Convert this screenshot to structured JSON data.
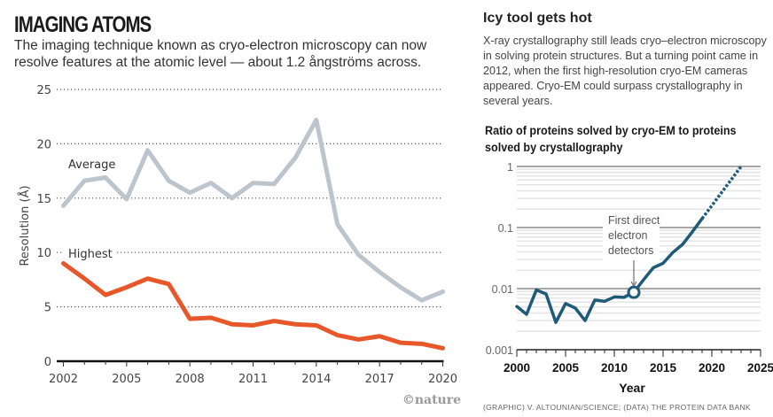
{
  "left": {
    "title": "IMAGING ATOMS",
    "subtitle": "The imaging technique known as cryo-electron microscopy can now resolve features at the atomic level — about 1.2 ångströms across.",
    "watermark": "©nature"
  },
  "right": {
    "title": "Icy tool gets hot",
    "body": "X-ray crystallography still leads cryo–electron microscopy in solving protein structures. But a turning point came in 2012, when the first high-resolution cryo-EM cameras appeared. Cryo-EM could surpass crystallography in several years.",
    "chart_title": "Ratio of proteins solved by cryo-EM to proteins solved by crystallography",
    "credit": "(GRAPHIC) V. ALTOUNIAN/SCIENCE; (DATA) THE PROTEIN DATA BANK"
  },
  "colors": {
    "average": "#bcc5cd",
    "highest": "#e8572a",
    "ratio": "#1f5a78",
    "grid": "#888888"
  },
  "chart_data": [
    {
      "type": "line",
      "title": "IMAGING ATOMS",
      "xlabel": "",
      "ylabel": "Resolution (Å)",
      "xlim": [
        2002,
        2020
      ],
      "ylim": [
        0,
        25
      ],
      "x_ticks": [
        2002,
        2005,
        2008,
        2011,
        2014,
        2017,
        2020
      ],
      "y_ticks": [
        0,
        5,
        10,
        15,
        20,
        25
      ],
      "grid": "horizontal dotted",
      "x": [
        2002,
        2003,
        2004,
        2005,
        2006,
        2007,
        2008,
        2009,
        2010,
        2011,
        2012,
        2013,
        2014,
        2015,
        2016,
        2017,
        2018,
        2019,
        2020
      ],
      "series": [
        {
          "name": "Average",
          "values": [
            14.3,
            16.6,
            16.9,
            14.9,
            19.4,
            16.6,
            15.5,
            16.4,
            15.0,
            16.4,
            16.3,
            18.7,
            22.2,
            12.6,
            9.8,
            8.2,
            6.8,
            5.6,
            6.4
          ]
        },
        {
          "name": "Highest",
          "values": [
            9.0,
            7.6,
            6.1,
            6.8,
            7.6,
            7.1,
            3.9,
            4.0,
            3.4,
            3.3,
            3.7,
            3.4,
            3.3,
            2.4,
            2.0,
            2.3,
            1.7,
            1.6,
            1.2
          ]
        }
      ]
    },
    {
      "type": "line",
      "title": "Ratio of proteins solved by cryo-EM to proteins solved by crystallography",
      "xlabel": "Year",
      "ylabel": "",
      "yscale": "log",
      "xlim": [
        2000,
        2025
      ],
      "ylim": [
        0.001,
        1
      ],
      "x_ticks": [
        2000,
        2005,
        2010,
        2015,
        2020,
        2025
      ],
      "y_ticks": [
        0.001,
        0.01,
        0.1,
        1
      ],
      "y_tick_labels": [
        "0.001",
        "0.01",
        "0.1",
        "1"
      ],
      "grid": "horizontal log minor",
      "x": [
        2000,
        2001,
        2002,
        2003,
        2004,
        2005,
        2006,
        2007,
        2008,
        2009,
        2010,
        2011,
        2012,
        2013,
        2014,
        2015,
        2016,
        2017,
        2018,
        2019
      ],
      "series": [
        {
          "name": "Ratio",
          "values": [
            0.0051,
            0.0038,
            0.0095,
            0.0082,
            0.0028,
            0.0057,
            0.0048,
            0.003,
            0.0065,
            0.0062,
            0.0073,
            0.0072,
            0.0087,
            0.014,
            0.022,
            0.026,
            0.039,
            0.053,
            0.085,
            0.14
          ]
        },
        {
          "name": "Projection",
          "style": "dotted",
          "x": [
            2019,
            2023
          ],
          "values": [
            0.14,
            1.0
          ]
        }
      ],
      "annotations": [
        {
          "text": "First direct electron detectors",
          "x": 2012,
          "y": 0.0087,
          "marker": "open-circle"
        }
      ]
    }
  ],
  "labels": {
    "average": "Average",
    "highest": "Highest",
    "ylabel_left": "Resolution (Å)",
    "xlabel_right": "Year",
    "annot_line1": "First direct",
    "annot_line2": "electron",
    "annot_line3": "detectors"
  }
}
